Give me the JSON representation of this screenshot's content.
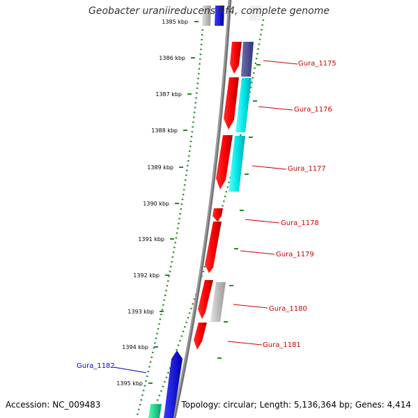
{
  "title": "Geobacter uraniireducens Rf4, complete genome",
  "footer": {
    "accession": "Accession: NC_009483",
    "summary": "Topology: circular; Length: 5,136,364 bp; Genes: 4,414"
  },
  "colors": {
    "backbone": "#888888",
    "tick": "#228B22",
    "forward_label": "#cc0000",
    "reverse_label": "#0000cc"
  },
  "kbp_labels": [
    "1385 kbp",
    "1386 kbp",
    "1387 kbp",
    "1388 kbp",
    "1389 kbp",
    "1390 kbp",
    "1391 kbp",
    "1392 kbp",
    "1393 kbp",
    "1394 kbp",
    "1395 kbp"
  ],
  "gene_labels": [
    {
      "name": "Gura_1175",
      "strand": "forward"
    },
    {
      "name": "Gura_1176",
      "strand": "forward"
    },
    {
      "name": "Gura_1177",
      "strand": "forward"
    },
    {
      "name": "Gura_1178",
      "strand": "forward"
    },
    {
      "name": "Gura_1179",
      "strand": "forward"
    },
    {
      "name": "Gura_1180",
      "strand": "forward"
    },
    {
      "name": "Gura_1181",
      "strand": "forward"
    },
    {
      "name": "Gura_1182",
      "strand": "reverse"
    }
  ]
}
